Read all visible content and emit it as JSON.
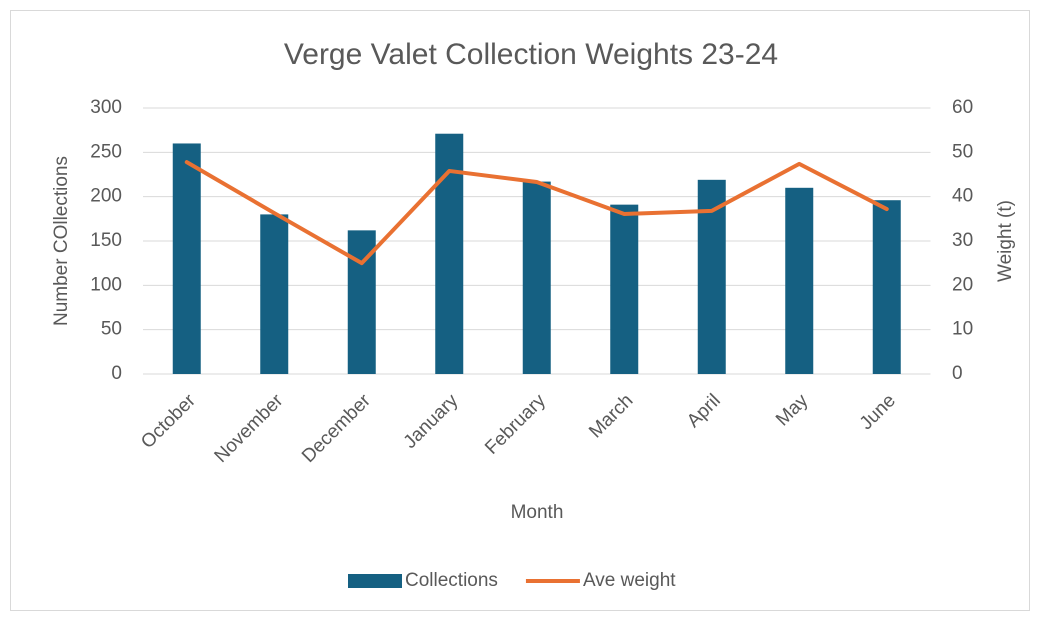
{
  "chart_data": {
    "type": "bar_line",
    "title": "Verge Valet Collection Weights 23-24",
    "x_label": "Month",
    "y_label": "Number COllections",
    "y2_label": "Weight (t)",
    "categories": [
      "October",
      "November",
      "December",
      "January",
      "February",
      "March",
      "April",
      "May",
      "June"
    ],
    "series": [
      {
        "name": "Collections",
        "type": "bar",
        "color": "#156082",
        "values": [
          260,
          180,
          162,
          271,
          217,
          191,
          219,
          210,
          196
        ]
      },
      {
        "name": "Ave weight",
        "type": "line",
        "axis": "y2",
        "color": "#e97132",
        "values": [
          47.8,
          36.3,
          25,
          45.8,
          43.3,
          36.1,
          36.8,
          47.4,
          37.2
        ]
      }
    ],
    "ylim": [
      0,
      300
    ],
    "yticks": [
      0,
      50,
      100,
      150,
      200,
      250,
      300
    ],
    "y2lim": [
      0,
      60
    ],
    "y2ticks": [
      0,
      10,
      20,
      30,
      40,
      50,
      60
    ],
    "grid": true,
    "legend": "bottom"
  }
}
